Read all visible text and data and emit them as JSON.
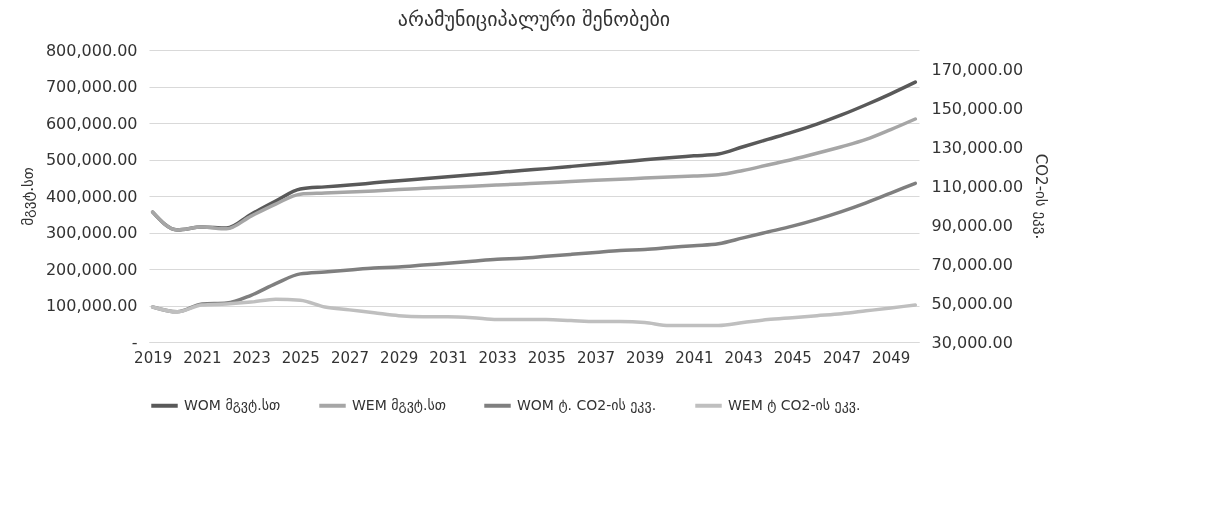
{
  "chart_data": {
    "type": "line",
    "title": "არამუნიციპალური შენობები",
    "ylabel": "მგვტ.სთ",
    "y2label": "CO2-ის ეკვ.",
    "categories": [
      "2019",
      null,
      "2021",
      null,
      "2023",
      null,
      "2025",
      null,
      "2027",
      null,
      "2029",
      null,
      "2031",
      null,
      "2033",
      null,
      "2035",
      null,
      "2037",
      null,
      "2039",
      null,
      "2041",
      null,
      "2043",
      null,
      "2045",
      null,
      "2047",
      null,
      "2049",
      null
    ],
    "series": [
      {
        "name": "WOM მგვტ.სთ",
        "color": "#595959",
        "values": [
          356000,
          307000,
          315000,
          312000,
          350000,
          386000,
          419000,
          425000,
          430000,
          436000,
          442000,
          447000,
          453000,
          458000,
          464000,
          470000,
          475000,
          481000,
          487000,
          493000,
          499000,
          505000,
          510000,
          515000,
          535000,
          555000,
          575000,
          597000,
          622000,
          650000,
          680000,
          712000
        ]
      },
      {
        "name": "WEM მგვტ.სთ",
        "color": "#a6a6a6",
        "values": [
          356000,
          307000,
          315000,
          310000,
          345000,
          378000,
          405000,
          408000,
          411000,
          414000,
          418000,
          421000,
          424000,
          427000,
          430000,
          433000,
          436000,
          440000,
          443000,
          446000,
          449000,
          452000,
          455000,
          458000,
          470000,
          485000,
          500000,
          517000,
          535000,
          555000,
          582000,
          611000
        ]
      },
      {
        "name": "WOM ტ. CO2-ის ეკვ.",
        "color": "#7f7f7f",
        "axis": "y2",
        "values": [
          48000,
          45500,
          49500,
          50000,
          54000,
          60000,
          65000,
          66000,
          67000,
          68000,
          68500,
          69500,
          70500,
          71500,
          72500,
          73000,
          74000,
          75000,
          76000,
          77000,
          77500,
          78500,
          79500,
          80500,
          83500,
          86500,
          89500,
          93000,
          97000,
          101500,
          106500,
          111500
        ]
      },
      {
        "name": "WEM ტ CO2-ის ეკვ.",
        "color": "#bfbfbf",
        "axis": "y2",
        "values": [
          48000,
          45500,
          49000,
          49500,
          50500,
          52000,
          51500,
          48000,
          46500,
          45000,
          43500,
          43000,
          43000,
          42500,
          41500,
          41500,
          41500,
          41000,
          40500,
          40500,
          40000,
          38500,
          38500,
          38500,
          40000,
          41500,
          42500,
          43500,
          44500,
          46000,
          47500,
          49000
        ]
      }
    ],
    "ylim": [
      0,
      800000
    ],
    "yticks": [
      {
        "value": 0,
        "label": "-"
      },
      {
        "value": 100000,
        "label": "100,000.00"
      },
      {
        "value": 200000,
        "label": "200,000.00"
      },
      {
        "value": 300000,
        "label": "300,000.00"
      },
      {
        "value": 400000,
        "label": "400,000.00"
      },
      {
        "value": 500000,
        "label": "500,000.00"
      },
      {
        "value": 600000,
        "label": "600,000.00"
      },
      {
        "value": 700000,
        "label": "700,000.00"
      },
      {
        "value": 800000,
        "label": "800,000.00"
      }
    ],
    "y2lim": [
      30000,
      180000
    ],
    "y2ticks": [
      {
        "value": 30000,
        "label": "30,000.00"
      },
      {
        "value": 50000,
        "label": "50,000.00"
      },
      {
        "value": 70000,
        "label": "70,000.00"
      },
      {
        "value": 90000,
        "label": "90,000.00"
      },
      {
        "value": 110000,
        "label": "110,000.00"
      },
      {
        "value": 130000,
        "label": "130,000.00"
      },
      {
        "value": 150000,
        "label": "150,000.00"
      },
      {
        "value": 170000,
        "label": "170,000.00"
      }
    ],
    "grid": "y",
    "legend": "bottom"
  }
}
